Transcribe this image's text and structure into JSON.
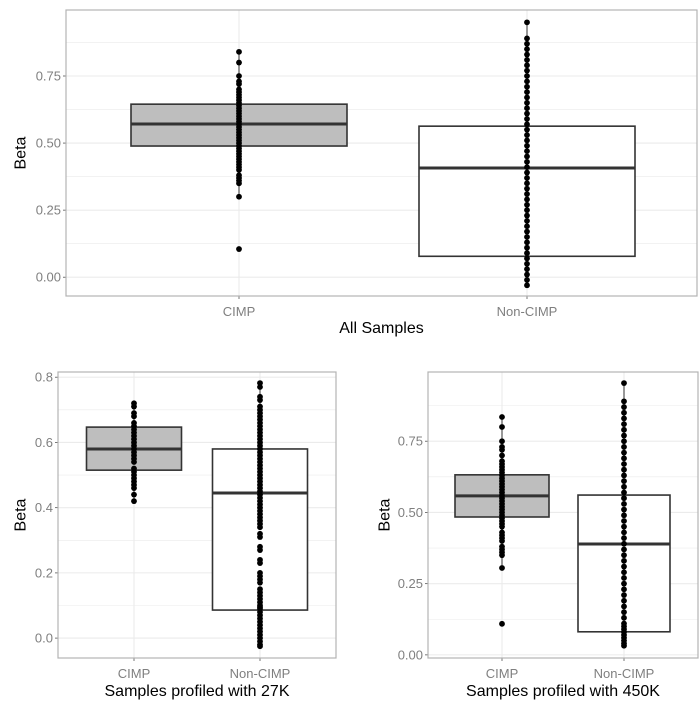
{
  "colors": {
    "cimp_fill": "#bebebe",
    "noncimp_fill": "#ffffff",
    "box_stroke": "#333333",
    "point": "#000000",
    "grid": "#ebebeb",
    "panel_border": "#b3b3b3"
  },
  "chart_data": [
    {
      "type": "box",
      "xlabel": "All Samples",
      "ylabel": "Beta",
      "categories": [
        "CIMP",
        "Non-CIMP"
      ],
      "ylim": [
        -0.07,
        0.996
      ],
      "yticks": [
        0.0,
        0.25,
        0.5,
        0.75
      ],
      "ytick_labels": [
        "0.00",
        "0.25",
        "0.50",
        "0.75"
      ],
      "grid": true,
      "groups": [
        {
          "category": "CIMP",
          "q1": 0.489,
          "median": 0.571,
          "q3": 0.645,
          "whisker_low": 0.3,
          "whisker_high": 0.84,
          "points": [
            0.84,
            0.8,
            0.75,
            0.73,
            0.72,
            0.7,
            0.69,
            0.68,
            0.67,
            0.66,
            0.65,
            0.64,
            0.63,
            0.62,
            0.61,
            0.6,
            0.59,
            0.58,
            0.57,
            0.56,
            0.55,
            0.54,
            0.53,
            0.52,
            0.51,
            0.5,
            0.49,
            0.48,
            0.47,
            0.46,
            0.45,
            0.44,
            0.43,
            0.42,
            0.41,
            0.4,
            0.38,
            0.37,
            0.36,
            0.35,
            0.3,
            0.105
          ]
        },
        {
          "category": "Non-CIMP",
          "q1": 0.078,
          "median": 0.407,
          "q3": 0.563,
          "whisker_low": -0.03,
          "whisker_high": 0.95,
          "points": [
            0.95,
            0.89,
            0.87,
            0.85,
            0.83,
            0.81,
            0.79,
            0.77,
            0.75,
            0.73,
            0.71,
            0.69,
            0.67,
            0.65,
            0.63,
            0.61,
            0.59,
            0.57,
            0.55,
            0.53,
            0.51,
            0.49,
            0.47,
            0.45,
            0.43,
            0.41,
            0.39,
            0.37,
            0.35,
            0.33,
            0.31,
            0.29,
            0.27,
            0.25,
            0.23,
            0.21,
            0.19,
            0.17,
            0.15,
            0.13,
            0.11,
            0.09,
            0.07,
            0.05,
            0.03,
            0.01,
            -0.01,
            -0.03
          ]
        }
      ]
    },
    {
      "type": "box",
      "xlabel": "Samples profiled with 27K",
      "ylabel": "Beta",
      "categories": [
        "CIMP",
        "Non-CIMP"
      ],
      "ylim": [
        -0.061,
        0.816
      ],
      "yticks": [
        0.0,
        0.2,
        0.4,
        0.6,
        0.8
      ],
      "ytick_labels": [
        "0.0",
        "0.2",
        "0.4",
        "0.6",
        "0.8"
      ],
      "grid": true,
      "groups": [
        {
          "category": "CIMP",
          "q1": 0.515,
          "median": 0.58,
          "q3": 0.647,
          "whisker_low": 0.42,
          "whisker_high": 0.72,
          "points": [
            0.72,
            0.71,
            0.69,
            0.68,
            0.66,
            0.65,
            0.64,
            0.63,
            0.62,
            0.61,
            0.6,
            0.59,
            0.58,
            0.57,
            0.56,
            0.55,
            0.54,
            0.52,
            0.51,
            0.5,
            0.49,
            0.48,
            0.47,
            0.46,
            0.44,
            0.42
          ]
        },
        {
          "category": "Non-CIMP",
          "q1": 0.086,
          "median": 0.445,
          "q3": 0.58,
          "whisker_low": -0.025,
          "whisker_high": 0.782,
          "points": [
            0.782,
            0.77,
            0.74,
            0.73,
            0.71,
            0.7,
            0.69,
            0.68,
            0.67,
            0.66,
            0.65,
            0.64,
            0.63,
            0.62,
            0.61,
            0.6,
            0.59,
            0.58,
            0.57,
            0.56,
            0.55,
            0.54,
            0.53,
            0.52,
            0.51,
            0.5,
            0.49,
            0.48,
            0.47,
            0.46,
            0.45,
            0.44,
            0.43,
            0.42,
            0.41,
            0.4,
            0.39,
            0.38,
            0.37,
            0.36,
            0.35,
            0.34,
            0.32,
            0.31,
            0.28,
            0.27,
            0.24,
            0.23,
            0.2,
            0.19,
            0.18,
            0.17,
            0.15,
            0.14,
            0.13,
            0.12,
            0.11,
            0.1,
            0.095,
            0.09,
            0.08,
            0.07,
            0.06,
            0.05,
            0.04,
            0.03,
            0.02,
            0.01,
            0.0,
            -0.01,
            -0.02,
            -0.025
          ]
        }
      ]
    },
    {
      "type": "box",
      "xlabel": "Samples profiled with 450K",
      "ylabel": "Beta",
      "categories": [
        "CIMP",
        "Non-CIMP"
      ],
      "ylim": [
        -0.011,
        0.993
      ],
      "yticks": [
        0.0,
        0.25,
        0.5,
        0.75
      ],
      "ytick_labels": [
        "0.00",
        "0.25",
        "0.50",
        "0.75"
      ],
      "grid": true,
      "groups": [
        {
          "category": "CIMP",
          "q1": 0.484,
          "median": 0.558,
          "q3": 0.632,
          "whisker_low": 0.305,
          "whisker_high": 0.835,
          "points": [
            0.835,
            0.8,
            0.75,
            0.73,
            0.72,
            0.7,
            0.68,
            0.67,
            0.66,
            0.65,
            0.64,
            0.63,
            0.62,
            0.61,
            0.6,
            0.59,
            0.58,
            0.57,
            0.56,
            0.55,
            0.54,
            0.53,
            0.52,
            0.51,
            0.5,
            0.49,
            0.48,
            0.47,
            0.46,
            0.45,
            0.43,
            0.42,
            0.41,
            0.4,
            0.38,
            0.37,
            0.36,
            0.35,
            0.305,
            0.109
          ]
        },
        {
          "category": "Non-CIMP",
          "q1": 0.081,
          "median": 0.389,
          "q3": 0.561,
          "whisker_low": 0.032,
          "whisker_high": 0.954,
          "points": [
            0.954,
            0.89,
            0.87,
            0.85,
            0.83,
            0.81,
            0.79,
            0.77,
            0.75,
            0.73,
            0.71,
            0.69,
            0.67,
            0.65,
            0.63,
            0.61,
            0.59,
            0.57,
            0.55,
            0.53,
            0.51,
            0.49,
            0.47,
            0.45,
            0.43,
            0.41,
            0.39,
            0.37,
            0.35,
            0.33,
            0.31,
            0.29,
            0.27,
            0.25,
            0.23,
            0.21,
            0.19,
            0.17,
            0.15,
            0.13,
            0.11,
            0.1,
            0.09,
            0.08,
            0.07,
            0.06,
            0.05,
            0.04,
            0.032
          ]
        }
      ]
    }
  ]
}
